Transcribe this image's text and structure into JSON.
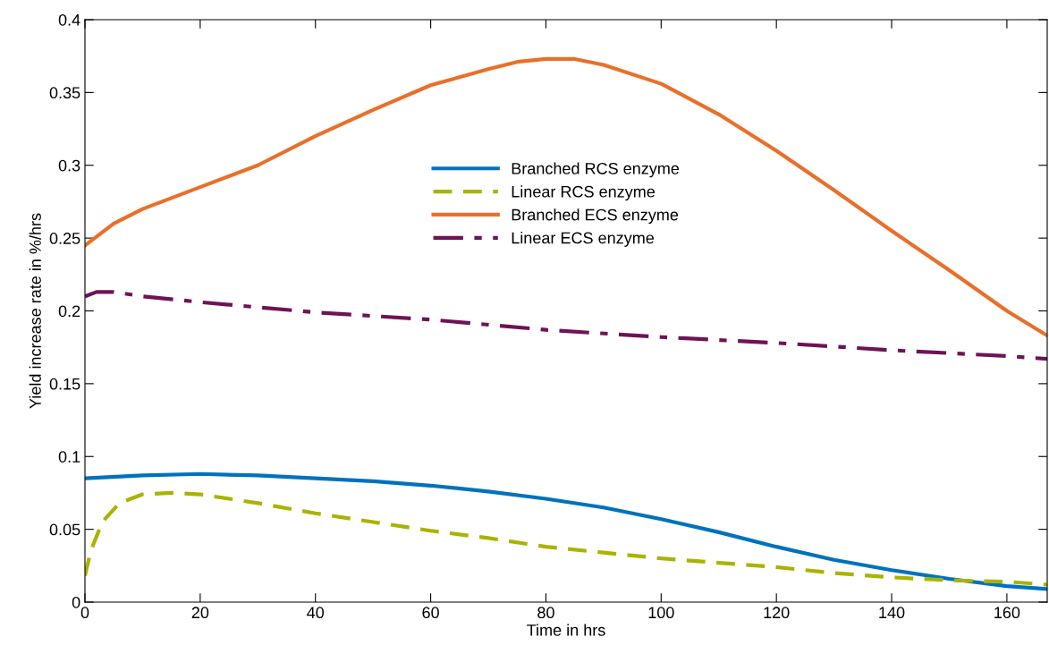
{
  "chart_data": {
    "type": "line",
    "xlabel": "Time in hrs",
    "ylabel": "Yield increase rate in %/hrs",
    "xlim": [
      0,
      167
    ],
    "ylim": [
      0,
      0.4
    ],
    "xticks": [
      0,
      20,
      40,
      60,
      80,
      100,
      120,
      140,
      160
    ],
    "yticks": [
      0,
      0.05,
      0.1,
      0.15,
      0.2,
      0.25,
      0.3,
      0.35,
      0.4
    ],
    "grid": false,
    "legend": "top",
    "series": [
      {
        "name": "Branched RCS enzyme",
        "color": "#0072bd",
        "line_style": "solid",
        "x": [
          0,
          10,
          20,
          30,
          40,
          50,
          60,
          70,
          80,
          90,
          100,
          110,
          120,
          130,
          140,
          150,
          160,
          167
        ],
        "values": [
          0.085,
          0.087,
          0.088,
          0.087,
          0.085,
          0.083,
          0.08,
          0.076,
          0.071,
          0.065,
          0.057,
          0.048,
          0.038,
          0.029,
          0.022,
          0.016,
          0.011,
          0.009
        ]
      },
      {
        "name": "Linear RCS enzyme",
        "color": "#a8b400",
        "line_style": "dashed",
        "x": [
          0,
          1,
          3,
          6,
          10,
          15,
          20,
          30,
          40,
          50,
          60,
          70,
          80,
          90,
          100,
          110,
          120,
          130,
          140,
          150,
          160,
          167
        ],
        "values": [
          0.018,
          0.035,
          0.055,
          0.068,
          0.074,
          0.075,
          0.074,
          0.068,
          0.061,
          0.055,
          0.049,
          0.044,
          0.038,
          0.034,
          0.03,
          0.027,
          0.024,
          0.02,
          0.017,
          0.015,
          0.014,
          0.012
        ]
      },
      {
        "name": "Branched ECS enzyme",
        "color": "#e8702a",
        "line_style": "solid",
        "x": [
          0,
          5,
          10,
          20,
          30,
          40,
          50,
          60,
          70,
          75,
          80,
          85,
          90,
          100,
          110,
          120,
          130,
          140,
          150,
          160,
          167
        ],
        "values": [
          0.245,
          0.26,
          0.27,
          0.285,
          0.3,
          0.32,
          0.338,
          0.355,
          0.366,
          0.371,
          0.373,
          0.373,
          0.369,
          0.356,
          0.335,
          0.31,
          0.283,
          0.255,
          0.228,
          0.2,
          0.183
        ]
      },
      {
        "name": "Linear ECS enzyme",
        "color": "#6e1356",
        "line_style": "dashdot",
        "x": [
          0,
          2,
          5,
          10,
          20,
          40,
          60,
          80,
          100,
          120,
          140,
          160,
          167
        ],
        "values": [
          0.21,
          0.213,
          0.213,
          0.21,
          0.206,
          0.199,
          0.194,
          0.187,
          0.182,
          0.178,
          0.173,
          0.169,
          0.167
        ]
      }
    ]
  }
}
